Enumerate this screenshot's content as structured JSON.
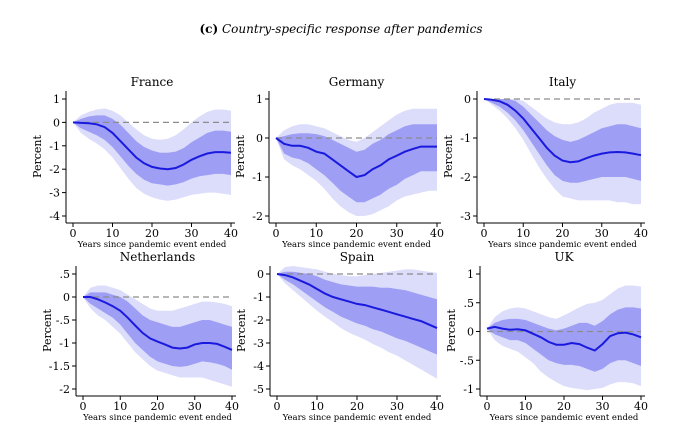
{
  "figure": {
    "label": "(c)",
    "title": "Country-specific response after pandemics"
  },
  "colors": {
    "line": "#1a1adf",
    "band_inner": "#9e9ef4",
    "band_outer": "#dcdcfb",
    "zero_line": "#8c8c8c",
    "axis": "#000000"
  },
  "chart_data": [
    {
      "type": "line",
      "title": "France",
      "xlabel": "Years since pandemic event ended",
      "ylabel": "Percent",
      "xlim": [
        0,
        40
      ],
      "ylim": [
        -4,
        1
      ],
      "xticks": [
        0,
        10,
        20,
        30,
        40
      ],
      "yticks": [
        1,
        0,
        -1,
        -2,
        -3,
        -4
      ],
      "xtick_labels": [
        "0",
        "10",
        "20",
        "30",
        "40"
      ],
      "ytick_labels": [
        "1",
        "0",
        "-1",
        "-2",
        "-3",
        "-4"
      ],
      "x": [
        0,
        2,
        4,
        6,
        8,
        10,
        12,
        14,
        16,
        18,
        20,
        22,
        24,
        26,
        28,
        30,
        32,
        34,
        36,
        38,
        40
      ],
      "series": [
        {
          "role": "estimate",
          "values": [
            0,
            -0.02,
            -0.04,
            -0.08,
            -0.2,
            -0.45,
            -0.8,
            -1.15,
            -1.5,
            -1.75,
            -1.9,
            -1.97,
            -2.0,
            -1.95,
            -1.8,
            -1.6,
            -1.45,
            -1.33,
            -1.27,
            -1.27,
            -1.3
          ]
        },
        {
          "role": "inner_lower",
          "values": [
            0,
            -0.25,
            -0.4,
            -0.55,
            -0.75,
            -1.05,
            -1.45,
            -1.85,
            -2.2,
            -2.45,
            -2.6,
            -2.65,
            -2.7,
            -2.65,
            -2.55,
            -2.4,
            -2.3,
            -2.25,
            -2.2,
            -2.2,
            -2.25
          ]
        },
        {
          "role": "inner_upper",
          "values": [
            0,
            0.15,
            0.25,
            0.3,
            0.3,
            0.15,
            -0.1,
            -0.45,
            -0.8,
            -1.05,
            -1.2,
            -1.3,
            -1.3,
            -1.25,
            -1.1,
            -0.85,
            -0.65,
            -0.45,
            -0.35,
            -0.35,
            -0.4
          ]
        },
        {
          "role": "outer_lower",
          "values": [
            0,
            -0.45,
            -0.7,
            -0.9,
            -1.15,
            -1.5,
            -1.95,
            -2.4,
            -2.8,
            -3.05,
            -3.2,
            -3.3,
            -3.35,
            -3.3,
            -3.2,
            -3.1,
            -3.05,
            -3.0,
            -3.0,
            -3.05,
            -3.1
          ]
        },
        {
          "role": "outer_upper",
          "values": [
            0,
            0.3,
            0.45,
            0.55,
            0.6,
            0.5,
            0.3,
            0.0,
            -0.3,
            -0.55,
            -0.7,
            -0.75,
            -0.7,
            -0.55,
            -0.3,
            0.0,
            0.25,
            0.45,
            0.55,
            0.55,
            0.5
          ]
        }
      ]
    },
    {
      "type": "line",
      "title": "Germany",
      "xlabel": "Years since pandemic event ended",
      "ylabel": "Percent",
      "xlim": [
        0,
        40
      ],
      "ylim": [
        -2,
        1
      ],
      "xticks": [
        0,
        10,
        20,
        30,
        40
      ],
      "yticks": [
        1,
        0,
        -1,
        -2
      ],
      "xtick_labels": [
        "0",
        "10",
        "20",
        "30",
        "40"
      ],
      "ytick_labels": [
        "1",
        "0",
        "-1",
        "-2"
      ],
      "x": [
        0,
        2,
        4,
        6,
        8,
        10,
        12,
        14,
        16,
        18,
        20,
        22,
        24,
        26,
        28,
        30,
        32,
        34,
        36,
        38,
        40
      ],
      "series": [
        {
          "role": "estimate",
          "values": [
            0,
            -0.15,
            -0.2,
            -0.2,
            -0.25,
            -0.35,
            -0.4,
            -0.55,
            -0.7,
            -0.85,
            -1.0,
            -0.95,
            -0.8,
            -0.7,
            -0.55,
            -0.45,
            -0.35,
            -0.28,
            -0.22,
            -0.22,
            -0.22
          ]
        },
        {
          "role": "inner_lower",
          "values": [
            0,
            -0.4,
            -0.5,
            -0.55,
            -0.65,
            -0.8,
            -0.95,
            -1.15,
            -1.35,
            -1.5,
            -1.65,
            -1.65,
            -1.55,
            -1.45,
            -1.3,
            -1.2,
            -1.05,
            -0.95,
            -0.85,
            -0.85,
            -0.85
          ]
        },
        {
          "role": "inner_upper",
          "values": [
            0,
            0.05,
            0.1,
            0.12,
            0.12,
            0.1,
            0.05,
            -0.05,
            -0.15,
            -0.25,
            -0.35,
            -0.3,
            -0.15,
            -0.05,
            0.1,
            0.2,
            0.3,
            0.35,
            0.35,
            0.35,
            0.35
          ]
        },
        {
          "role": "outer_lower",
          "values": [
            0,
            -0.55,
            -0.7,
            -0.8,
            -0.95,
            -1.1,
            -1.3,
            -1.55,
            -1.75,
            -1.9,
            -2.0,
            -2.0,
            -1.95,
            -1.85,
            -1.75,
            -1.6,
            -1.5,
            -1.45,
            -1.4,
            -1.35,
            -1.35
          ]
        },
        {
          "role": "outer_upper",
          "values": [
            0,
            0.2,
            0.3,
            0.35,
            0.35,
            0.3,
            0.25,
            0.15,
            0.05,
            -0.05,
            -0.1,
            0.0,
            0.15,
            0.3,
            0.45,
            0.6,
            0.7,
            0.75,
            0.75,
            0.75,
            0.75
          ]
        }
      ]
    },
    {
      "type": "line",
      "title": "Italy",
      "xlabel": "Years since pandemic event ended",
      "ylabel": "Percent",
      "xlim": [
        0,
        40
      ],
      "ylim": [
        -3,
        0
      ],
      "xticks": [
        0,
        10,
        20,
        30,
        40
      ],
      "yticks": [
        0,
        -1,
        -2,
        -3
      ],
      "xtick_labels": [
        "0",
        "10",
        "20",
        "30",
        "40"
      ],
      "ytick_labels": [
        "0",
        "-1",
        "-2",
        "-3"
      ],
      "x": [
        0,
        2,
        4,
        6,
        8,
        10,
        12,
        14,
        16,
        18,
        20,
        22,
        24,
        26,
        28,
        30,
        32,
        34,
        36,
        38,
        40
      ],
      "series": [
        {
          "role": "estimate",
          "values": [
            0,
            -0.02,
            -0.06,
            -0.15,
            -0.3,
            -0.5,
            -0.75,
            -1.0,
            -1.25,
            -1.45,
            -1.58,
            -1.62,
            -1.6,
            -1.52,
            -1.45,
            -1.4,
            -1.37,
            -1.36,
            -1.37,
            -1.4,
            -1.44
          ]
        },
        {
          "role": "inner_lower",
          "values": [
            0,
            -0.1,
            -0.2,
            -0.35,
            -0.55,
            -0.8,
            -1.1,
            -1.4,
            -1.7,
            -1.95,
            -2.1,
            -2.15,
            -2.15,
            -2.1,
            -2.05,
            -2.0,
            -2.0,
            -2.0,
            -2.0,
            -2.05,
            -2.1
          ]
        },
        {
          "role": "inner_upper",
          "values": [
            0,
            0.0,
            0.0,
            0.0,
            -0.05,
            -0.2,
            -0.4,
            -0.6,
            -0.8,
            -0.95,
            -1.05,
            -1.1,
            -1.05,
            -0.95,
            -0.85,
            -0.75,
            -0.7,
            -0.65,
            -0.65,
            -0.7,
            -0.75
          ]
        },
        {
          "role": "outer_lower",
          "values": [
            0,
            -0.15,
            -0.3,
            -0.5,
            -0.75,
            -1.05,
            -1.4,
            -1.75,
            -2.05,
            -2.3,
            -2.5,
            -2.55,
            -2.6,
            -2.6,
            -2.6,
            -2.6,
            -2.6,
            -2.65,
            -2.65,
            -2.7,
            -2.7
          ]
        },
        {
          "role": "outer_upper",
          "values": [
            0,
            0.0,
            0.0,
            0.0,
            0.0,
            -0.05,
            -0.2,
            -0.35,
            -0.5,
            -0.6,
            -0.65,
            -0.65,
            -0.6,
            -0.5,
            -0.35,
            -0.25,
            -0.15,
            -0.1,
            -0.1,
            -0.1,
            -0.15
          ]
        }
      ]
    },
    {
      "type": "line",
      "title": "Netherlands",
      "xlabel": "Years since pandemic event ended",
      "ylabel": "Percent",
      "xlim": [
        0,
        40
      ],
      "ylim": [
        -2,
        0.5
      ],
      "xticks": [
        0,
        10,
        20,
        30,
        40
      ],
      "yticks": [
        0.5,
        0,
        -0.5,
        -1,
        -1.5,
        -2
      ],
      "xtick_labels": [
        "0",
        "10",
        "20",
        "30",
        "40"
      ],
      "ytick_labels": [
        ".5",
        "0",
        "-.5",
        "-1",
        "-1.5",
        "-2"
      ],
      "x": [
        0,
        2,
        4,
        6,
        8,
        10,
        12,
        14,
        16,
        18,
        20,
        22,
        24,
        26,
        28,
        30,
        32,
        34,
        36,
        38,
        40
      ],
      "series": [
        {
          "role": "estimate",
          "values": [
            0,
            0.0,
            -0.05,
            -0.12,
            -0.2,
            -0.3,
            -0.45,
            -0.62,
            -0.78,
            -0.9,
            -0.97,
            -1.03,
            -1.1,
            -1.12,
            -1.1,
            -1.03,
            -1.0,
            -1.0,
            -1.02,
            -1.08,
            -1.15
          ]
        },
        {
          "role": "inner_lower",
          "values": [
            0,
            -0.15,
            -0.25,
            -0.35,
            -0.45,
            -0.6,
            -0.8,
            -1.0,
            -1.15,
            -1.3,
            -1.4,
            -1.45,
            -1.5,
            -1.52,
            -1.5,
            -1.45,
            -1.4,
            -1.42,
            -1.45,
            -1.5,
            -1.58
          ]
        },
        {
          "role": "inner_upper",
          "values": [
            0,
            0.1,
            0.1,
            0.1,
            0.05,
            0.0,
            -0.1,
            -0.25,
            -0.4,
            -0.5,
            -0.55,
            -0.6,
            -0.65,
            -0.65,
            -0.6,
            -0.55,
            -0.5,
            -0.5,
            -0.55,
            -0.6,
            -0.65
          ]
        },
        {
          "role": "outer_lower",
          "values": [
            0,
            -0.25,
            -0.4,
            -0.5,
            -0.65,
            -0.8,
            -1.0,
            -1.2,
            -1.35,
            -1.5,
            -1.6,
            -1.65,
            -1.7,
            -1.75,
            -1.75,
            -1.75,
            -1.75,
            -1.8,
            -1.85,
            -1.9,
            -1.95
          ]
        },
        {
          "role": "outer_upper",
          "values": [
            0,
            0.2,
            0.25,
            0.25,
            0.2,
            0.15,
            0.05,
            -0.05,
            -0.15,
            -0.25,
            -0.3,
            -0.3,
            -0.3,
            -0.25,
            -0.2,
            -0.15,
            -0.1,
            -0.1,
            -0.12,
            -0.15,
            -0.2
          ]
        }
      ]
    },
    {
      "type": "line",
      "title": "Spain",
      "xlabel": "Years since pandemic event ended",
      "ylabel": "Percent",
      "xlim": [
        0,
        40
      ],
      "ylim": [
        -5,
        0
      ],
      "xticks": [
        0,
        10,
        20,
        30,
        40
      ],
      "yticks": [
        0,
        -1,
        -2,
        -3,
        -4,
        -5
      ],
      "xtick_labels": [
        "0",
        "10",
        "20",
        "30",
        "40"
      ],
      "ytick_labels": [
        "0",
        "-1",
        "-2",
        "-3",
        "-4",
        "-5"
      ],
      "x": [
        0,
        2,
        4,
        6,
        8,
        10,
        12,
        14,
        16,
        18,
        20,
        22,
        24,
        26,
        28,
        30,
        32,
        34,
        36,
        38,
        40
      ],
      "series": [
        {
          "role": "estimate",
          "values": [
            0,
            -0.05,
            -0.15,
            -0.3,
            -0.45,
            -0.65,
            -0.85,
            -1.0,
            -1.1,
            -1.2,
            -1.3,
            -1.35,
            -1.45,
            -1.55,
            -1.65,
            -1.75,
            -1.85,
            -1.95,
            -2.05,
            -2.2,
            -2.35
          ]
        },
        {
          "role": "inner_lower",
          "values": [
            0,
            -0.25,
            -0.45,
            -0.7,
            -0.95,
            -1.2,
            -1.45,
            -1.65,
            -1.85,
            -2.0,
            -2.15,
            -2.25,
            -2.4,
            -2.5,
            -2.65,
            -2.8,
            -2.9,
            -3.05,
            -3.2,
            -3.35,
            -3.5
          ]
        },
        {
          "role": "inner_upper",
          "values": [
            0,
            0.1,
            0.1,
            0.05,
            0.0,
            -0.1,
            -0.25,
            -0.35,
            -0.45,
            -0.5,
            -0.55,
            -0.55,
            -0.55,
            -0.6,
            -0.6,
            -0.65,
            -0.7,
            -0.8,
            -0.9,
            -1.0,
            -1.1
          ]
        },
        {
          "role": "outer_lower",
          "values": [
            0,
            -0.4,
            -0.7,
            -1.0,
            -1.3,
            -1.6,
            -1.85,
            -2.1,
            -2.35,
            -2.55,
            -2.7,
            -2.85,
            -3.05,
            -3.2,
            -3.4,
            -3.55,
            -3.75,
            -3.95,
            -4.15,
            -4.35,
            -4.55
          ]
        },
        {
          "role": "outer_upper",
          "values": [
            0,
            0.3,
            0.35,
            0.3,
            0.25,
            0.2,
            0.1,
            0.0,
            -0.05,
            -0.1,
            -0.1,
            -0.05,
            0.0,
            0.05,
            0.1,
            0.15,
            0.2,
            0.2,
            0.15,
            0.1,
            0.05
          ]
        }
      ]
    },
    {
      "type": "line",
      "title": "UK",
      "xlabel": "Years since pandemic event ended",
      "ylabel": "Percent",
      "xlim": [
        0,
        40
      ],
      "ylim": [
        -1,
        1
      ],
      "xticks": [
        0,
        10,
        20,
        30,
        40
      ],
      "yticks": [
        1,
        0.5,
        0,
        -0.5,
        -1
      ],
      "xtick_labels": [
        "0",
        "10",
        "20",
        "30",
        "40"
      ],
      "ytick_labels": [
        "1",
        ".5",
        "0",
        "-.5",
        "-1"
      ],
      "x": [
        0,
        2,
        4,
        6,
        8,
        10,
        12,
        14,
        16,
        18,
        20,
        22,
        24,
        26,
        28,
        30,
        32,
        34,
        36,
        38,
        40
      ],
      "series": [
        {
          "role": "estimate",
          "values": [
            0.05,
            0.08,
            0.05,
            0.03,
            0.04,
            0.02,
            -0.04,
            -0.1,
            -0.18,
            -0.23,
            -0.23,
            -0.2,
            -0.22,
            -0.28,
            -0.33,
            -0.22,
            -0.08,
            -0.03,
            -0.02,
            -0.05,
            -0.1
          ]
        },
        {
          "role": "inner_lower",
          "values": [
            0.05,
            -0.05,
            -0.1,
            -0.15,
            -0.15,
            -0.2,
            -0.3,
            -0.4,
            -0.5,
            -0.55,
            -0.58,
            -0.58,
            -0.6,
            -0.65,
            -0.7,
            -0.65,
            -0.55,
            -0.5,
            -0.5,
            -0.55,
            -0.6
          ]
        },
        {
          "role": "inner_upper",
          "values": [
            0.05,
            0.15,
            0.2,
            0.22,
            0.22,
            0.2,
            0.15,
            0.1,
            0.05,
            0.02,
            0.05,
            0.1,
            0.15,
            0.15,
            0.1,
            0.18,
            0.3,
            0.38,
            0.42,
            0.42,
            0.4
          ]
        },
        {
          "role": "outer_lower",
          "values": [
            0.05,
            -0.15,
            -0.25,
            -0.3,
            -0.35,
            -0.45,
            -0.55,
            -0.7,
            -0.8,
            -0.88,
            -0.95,
            -0.98,
            -1.0,
            -1.02,
            -1.0,
            -0.98,
            -0.92,
            -0.88,
            -0.88,
            -0.9,
            -0.95
          ]
        },
        {
          "role": "outer_upper",
          "values": [
            0.05,
            0.25,
            0.35,
            0.4,
            0.42,
            0.4,
            0.35,
            0.3,
            0.25,
            0.22,
            0.28,
            0.35,
            0.42,
            0.48,
            0.5,
            0.55,
            0.65,
            0.75,
            0.8,
            0.8,
            0.78
          ]
        }
      ]
    }
  ]
}
